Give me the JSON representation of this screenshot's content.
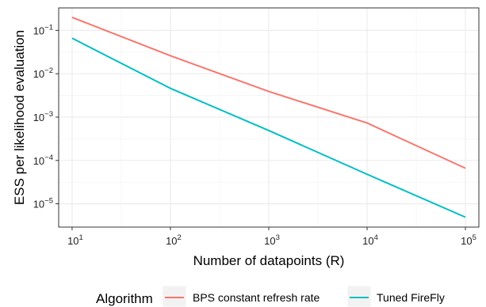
{
  "chart_data": {
    "type": "line",
    "xlabel": "Number of datapoints (R)",
    "ylabel": "ESS per likelihood evaluation",
    "x_scale": "log",
    "y_scale": "log",
    "x_ticks": [
      10,
      100,
      1000,
      10000,
      100000
    ],
    "y_ticks": [
      1e-05,
      0.0001,
      0.001,
      0.01,
      0.1
    ],
    "xlim": [
      7.3,
      137000
    ],
    "ylim": [
      2.9e-06,
      0.33
    ],
    "grid": true,
    "legend": {
      "title": "Algorithm",
      "position": "bottom"
    },
    "series": [
      {
        "name": "BPS constant refresh rate",
        "color": "#F8766D",
        "x": [
          10,
          100,
          1000,
          10000,
          100000
        ],
        "y": [
          0.2,
          0.026,
          0.0039,
          0.00073,
          6.6e-05
        ]
      },
      {
        "name": "Tuned FireFly",
        "color": "#00BFC4",
        "x": [
          10,
          100,
          1000,
          10000,
          100000
        ],
        "y": [
          0.066,
          0.0046,
          0.00049,
          4.8e-05,
          4.9e-06
        ]
      }
    ]
  }
}
